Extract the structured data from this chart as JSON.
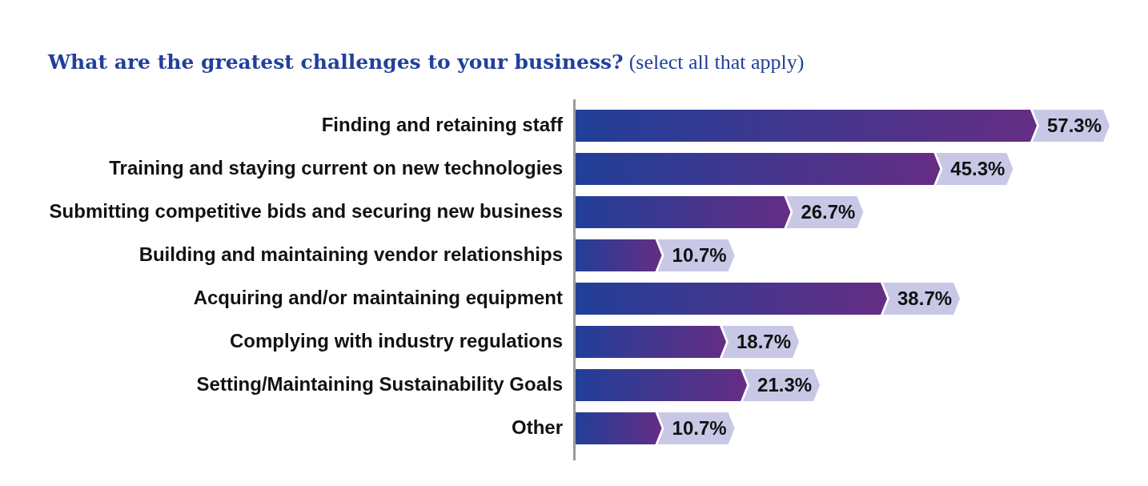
{
  "chart_data": {
    "type": "bar",
    "orientation": "horizontal",
    "title": "What are the greatest challenges to your business?",
    "subtitle": "(select all that apply)",
    "categories": [
      "Finding and retaining staff",
      "Training and staying current on new technologies",
      "Submitting competitive bids and securing new business",
      "Building and maintaining vendor relationships",
      "Acquiring and/or maintaining equipment",
      "Complying with industry regulations",
      "Setting/Maintaining Sustainability Goals",
      "Other"
    ],
    "values": [
      57.3,
      45.3,
      26.7,
      10.7,
      38.7,
      18.7,
      21.3,
      10.7
    ],
    "value_labels": [
      "57.3%",
      "45.3%",
      "26.7%",
      "10.7%",
      "38.7%",
      "18.7%",
      "21.3%",
      "10.7%"
    ],
    "color": "#213f98",
    "tick_labels": "y"
  }
}
